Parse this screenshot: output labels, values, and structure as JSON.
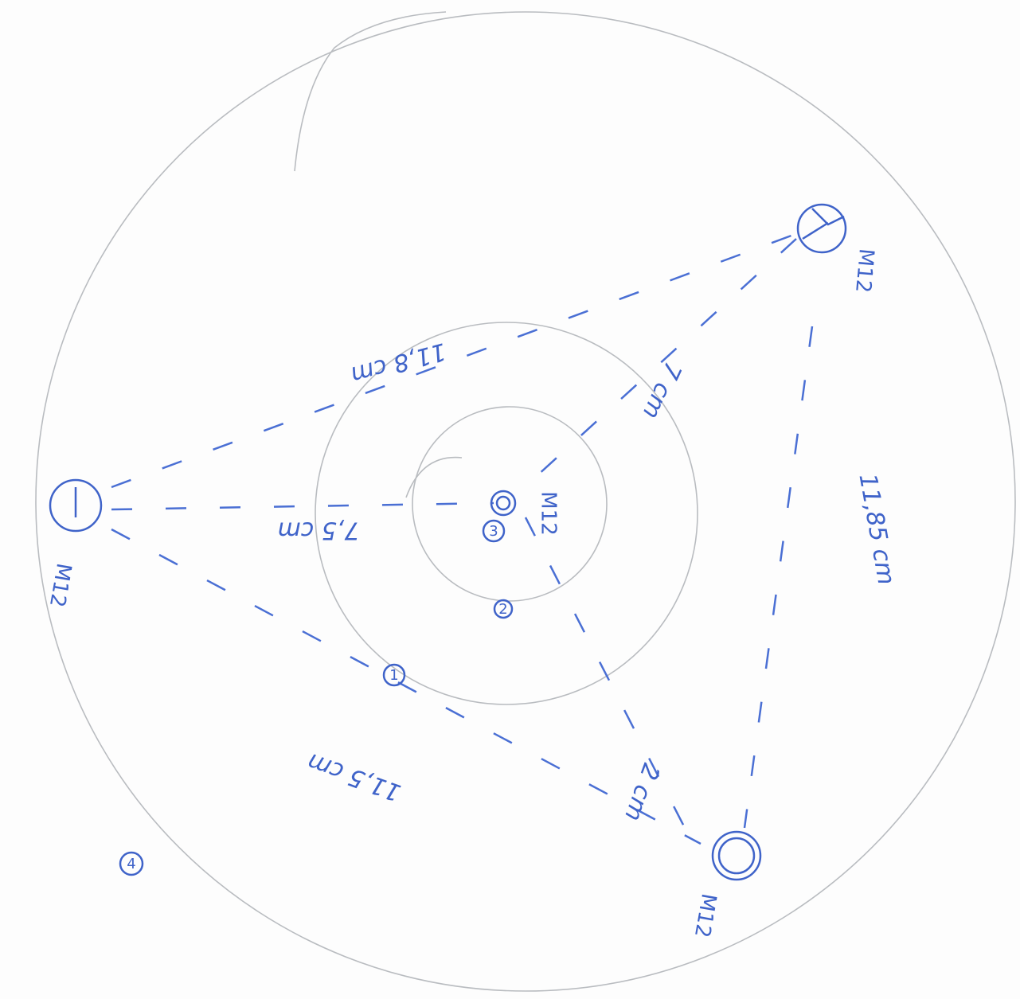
{
  "holes": [
    "M12",
    "M12",
    "M12",
    "M12"
  ],
  "dimensions": [
    "11,8 cm",
    "7,5 cm",
    "7 cm",
    "11,85 cm",
    "11,5 cm",
    "2 cm"
  ],
  "markers": [
    "1",
    "2",
    "3",
    "4"
  ]
}
